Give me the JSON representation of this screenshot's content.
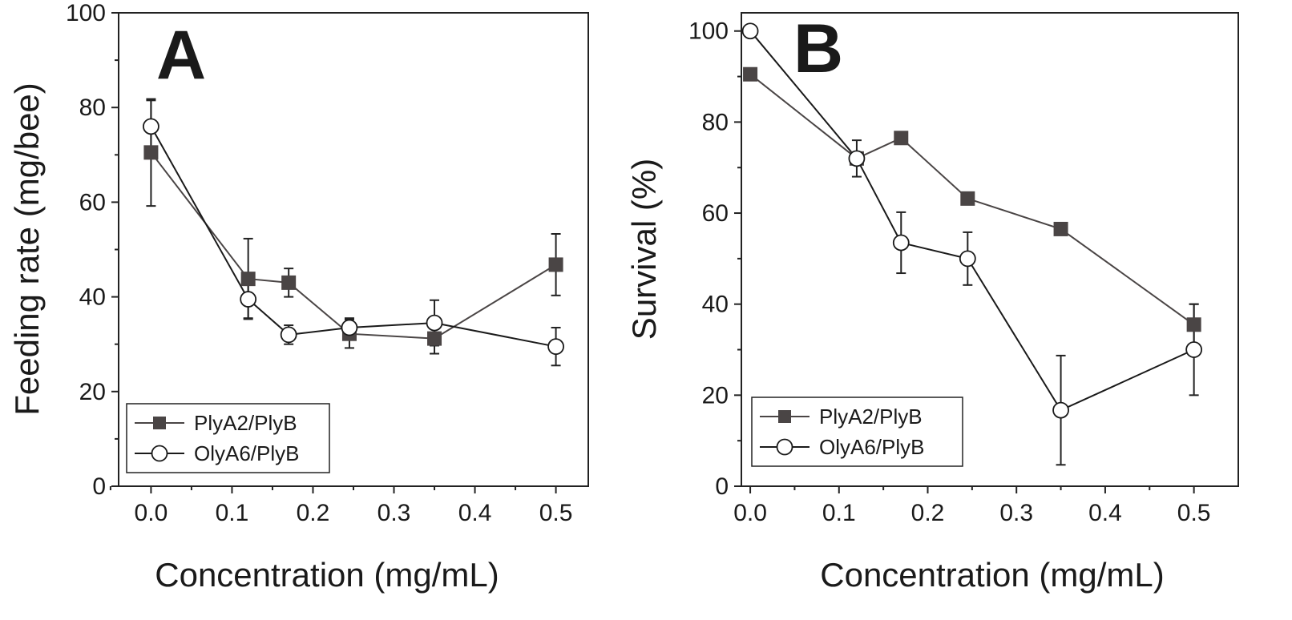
{
  "chart_data": [
    {
      "type": "line",
      "panel_label": "A",
      "xlabel": "Concentration (mg/mL)",
      "ylabel": "Feeding rate (mg/bee)",
      "xlim": [
        -0.04,
        0.54
      ],
      "ylim": [
        0,
        100
      ],
      "xticks": [
        0.0,
        0.1,
        0.2,
        0.3,
        0.4,
        0.5
      ],
      "xtick_labels": [
        "0.0",
        "0.1",
        "0.2",
        "0.3",
        "0.4",
        "0.5"
      ],
      "yticks": [
        0,
        20,
        40,
        60,
        80,
        100
      ],
      "ytick_labels": [
        "0",
        "20",
        "40",
        "60",
        "80",
        "100"
      ],
      "legend_position": "bottom-left",
      "series": [
        {
          "name": "PlyA2/PlyB",
          "marker": "filled-square",
          "color": "#4a4545",
          "x": [
            0.0,
            0.12,
            0.17,
            0.245,
            0.35,
            0.5
          ],
          "y": [
            70.5,
            43.8,
            43.0,
            32.2,
            31.2,
            46.8
          ],
          "err": [
            11.3,
            8.5,
            3.0,
            3.0,
            3.2,
            6.5
          ]
        },
        {
          "name": "OlyA6/PlyB",
          "marker": "open-circle",
          "color": "#1a1a1a",
          "x": [
            0.0,
            0.12,
            0.17,
            0.245,
            0.35,
            0.5
          ],
          "y": [
            76.0,
            39.5,
            32.0,
            33.5,
            34.5,
            29.5
          ],
          "err": [
            5.5,
            4.0,
            2.0,
            2.0,
            4.8,
            4.0
          ]
        }
      ]
    },
    {
      "type": "line",
      "panel_label": "B",
      "xlabel": "Concentration (mg/mL)",
      "ylabel": "Survival (%)",
      "xlim": [
        -0.01,
        0.55
      ],
      "ylim": [
        0,
        104
      ],
      "xticks": [
        0.0,
        0.1,
        0.2,
        0.3,
        0.4,
        0.5
      ],
      "xtick_labels": [
        "0.0",
        "0.1",
        "0.2",
        "0.3",
        "0.4",
        "0.5"
      ],
      "yticks": [
        0,
        20,
        40,
        60,
        80,
        100
      ],
      "ytick_labels": [
        "0",
        "20",
        "40",
        "60",
        "80",
        "100"
      ],
      "legend_position": "bottom-left",
      "series": [
        {
          "name": "PlyA2/PlyB",
          "marker": "filled-square",
          "color": "#4a4545",
          "x": [
            0.0,
            0.12,
            0.17,
            0.245,
            0.35,
            0.5
          ],
          "y": [
            90.5,
            72.0,
            76.5,
            63.2,
            56.5,
            35.5
          ],
          "err": [
            0,
            0,
            0,
            0,
            0,
            4.5
          ]
        },
        {
          "name": "OlyA6/PlyB",
          "marker": "open-circle",
          "color": "#1a1a1a",
          "x": [
            0.0,
            0.12,
            0.17,
            0.245,
            0.35,
            0.5
          ],
          "y": [
            100.0,
            72.0,
            53.5,
            50.0,
            16.7,
            30.0
          ],
          "err": [
            0,
            4.0,
            6.7,
            5.8,
            12.0,
            10.0
          ]
        }
      ]
    }
  ]
}
